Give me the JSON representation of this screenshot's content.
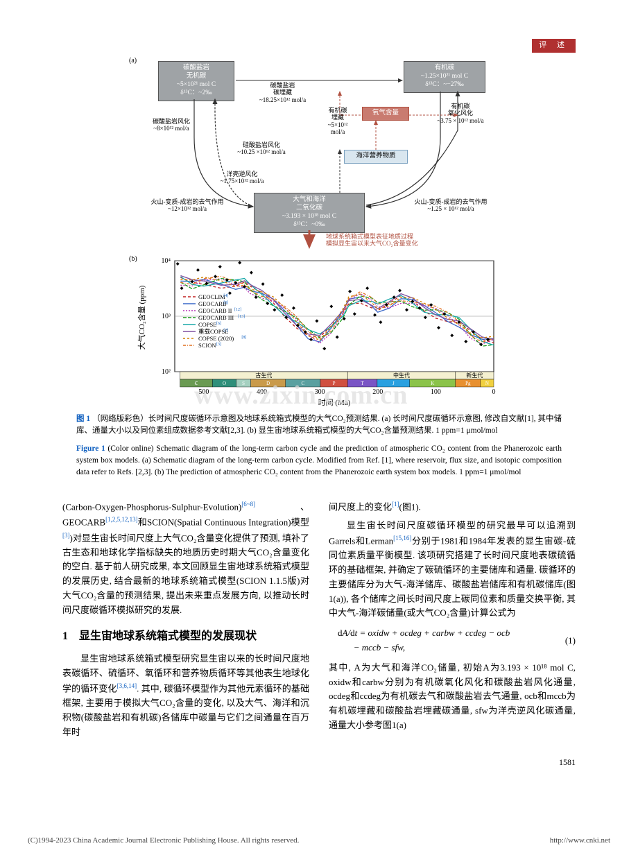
{
  "header": {
    "badge": "评 述"
  },
  "figure": {
    "panel_a_label": "(a)",
    "panel_b_label": "(b)",
    "boxes": {
      "carbonate_rock": {
        "l1": "碳酸盐岩",
        "l2": "无机碳",
        "l3": "~5×10²¹ mol C",
        "l4": "δ¹³C：~2‰"
      },
      "organic_c": {
        "l1": "有机碳",
        "l2": "~1.25×10²¹ mol C",
        "l3": "δ¹³C：~−27‰"
      },
      "ocean_atm": {
        "l1": "大气和海洋",
        "l2": "二氧化碳",
        "l3": "~3.193 × 10¹⁸ mol C",
        "l4": "δ¹³C：~0‰"
      },
      "oxygen": "氧气含量",
      "nutrient": "海洋营养物质"
    },
    "flux_labels": {
      "carbonate_burial": {
        "l1": "碳酸盐岩",
        "l2": "碳埋藏",
        "l3": "~18.25×10¹² mol/a"
      },
      "carbonate_weather": {
        "l1": "碳酸盐岩风化",
        "l2": "~8×10¹² mol/a"
      },
      "silicate_weather": {
        "l1": "硅酸盐岩风化",
        "l2": "~10.25",
        "l3": "×10¹² mol/a"
      },
      "reverse_weather": {
        "l1": "洋壳逆风化",
        "l2": "~1.75×10¹² mol/a"
      },
      "volcano_left": {
        "l1": "火山-变质-成岩的去气作用",
        "l2": "~12×10¹² mol/a"
      },
      "volcano_right": {
        "l1": "火山-变质-成岩的去气作用",
        "l2": "~1.25 × 10¹² mol/a"
      },
      "org_burial": {
        "l1": "有机碳",
        "l2": "埋藏",
        "l3": "~5×10¹²",
        "l4": "mol/a"
      },
      "org_ox_weather": {
        "l1": "有机碳",
        "l2": "氧化风化",
        "l3": "~3.75 × 10¹² mol/a"
      },
      "bottom_note": {
        "l1": "地球系统箱式模型表征地质过程",
        "l2": "模拟显生宙以来大气CO₂含量变化"
      }
    },
    "chart": {
      "ylabel": "大气CO₂含量 (ppm)",
      "xlabel": "时间 (Ma)",
      "ylim": [
        100,
        10000
      ],
      "yticks": [
        100,
        1000,
        10000
      ],
      "ytick_labels": [
        "10²",
        "10³",
        "10⁴"
      ],
      "xlim": [
        550,
        0
      ],
      "xticks": [
        500,
        400,
        300,
        200,
        100,
        0
      ],
      "background": "#ffffff",
      "grid_color": "#e8e8e8",
      "legend": [
        {
          "name": "GEOCLIM",
          "color": "#c02020",
          "dash": "4,3",
          "ref": "[4]"
        },
        {
          "name": "GEOCARB",
          "color": "#3a68c8",
          "dash": "",
          "ref": "[5]"
        },
        {
          "name": "GEOCARB II",
          "color": "#b535b5",
          "dash": "2,2",
          "ref": "[12]"
        },
        {
          "name": "GEOCARB III",
          "color": "#1a9a1a",
          "dash": "5,2",
          "ref": "[13]"
        },
        {
          "name": "COPSE",
          "color": "#18a8a8",
          "dash": "",
          "ref": "[6]"
        },
        {
          "name": "重载COPSE",
          "color": "#8050a0",
          "dash": "",
          "ref": "[7]"
        },
        {
          "name": "COPSE (2020)",
          "color": "#d08000",
          "dash": "3,3",
          "ref": "[8]"
        },
        {
          "name": "SCION",
          "color": "#e07020",
          "dash": "4,2,1,2",
          "ref": "[3]"
        }
      ],
      "geo_eras": {
        "paleozoic": "古生代",
        "mesozoic": "中生代",
        "cenozoic": "新生代"
      },
      "geo_bands": [
        {
          "label": "Ꞓ",
          "w": 40,
          "color": "#6a9a52"
        },
        {
          "label": "O",
          "w": 40,
          "color": "#2f8f7a"
        },
        {
          "label": "S",
          "w": 22,
          "color": "#a5d0c0"
        },
        {
          "label": "D",
          "w": 48,
          "color": "#c99a4a"
        },
        {
          "label": "C",
          "w": 52,
          "color": "#5aa0a0"
        },
        {
          "label": "P",
          "w": 40,
          "color": "#d05040"
        },
        {
          "label": "T",
          "w": 45,
          "color": "#7a55c5"
        },
        {
          "label": "J",
          "w": 50,
          "color": "#2aa0e0"
        },
        {
          "label": "K",
          "w": 70,
          "color": "#8bc34a"
        },
        {
          "label": "Pg",
          "w": 35,
          "color": "#e89030"
        },
        {
          "label": "N",
          "w": 18,
          "color": "#f0d040"
        }
      ],
      "data_points_approx": [
        [
          540,
          4500
        ],
        [
          520,
          3800
        ],
        [
          500,
          4100
        ],
        [
          470,
          4200
        ],
        [
          445,
          3900
        ],
        [
          430,
          4000
        ],
        [
          420,
          3200
        ],
        [
          400,
          2400
        ],
        [
          380,
          1800
        ],
        [
          360,
          1200
        ],
        [
          340,
          800
        ],
        [
          320,
          500
        ],
        [
          300,
          400
        ],
        [
          280,
          600
        ],
        [
          260,
          1100
        ],
        [
          250,
          1800
        ],
        [
          230,
          2200
        ],
        [
          210,
          1800
        ],
        [
          200,
          1500
        ],
        [
          180,
          1700
        ],
        [
          160,
          2100
        ],
        [
          140,
          1800
        ],
        [
          120,
          1400
        ],
        [
          100,
          1200
        ],
        [
          80,
          1000
        ],
        [
          60,
          800
        ],
        [
          40,
          500
        ],
        [
          20,
          350
        ],
        [
          0,
          350
        ]
      ],
      "scatter_points": [
        [
          545,
          8800
        ],
        [
          538,
          3200
        ],
        [
          520,
          4200
        ],
        [
          510,
          6800
        ],
        [
          495,
          3900
        ],
        [
          480,
          5200
        ],
        [
          472,
          7800
        ],
        [
          460,
          4500
        ],
        [
          455,
          2600
        ],
        [
          445,
          4000
        ],
        [
          438,
          9200
        ],
        [
          430,
          3400
        ],
        [
          418,
          6100
        ],
        [
          410,
          2200
        ],
        [
          398,
          3800
        ],
        [
          390,
          1700
        ],
        [
          378,
          1300
        ],
        [
          365,
          2400
        ],
        [
          358,
          950
        ],
        [
          345,
          1400
        ],
        [
          338,
          680
        ],
        [
          325,
          520
        ],
        [
          315,
          380
        ],
        [
          305,
          820
        ],
        [
          292,
          260
        ],
        [
          280,
          1500
        ],
        [
          270,
          420
        ],
        [
          258,
          900
        ],
        [
          248,
          2800
        ],
        [
          240,
          1100
        ],
        [
          228,
          1900
        ],
        [
          218,
          3200
        ],
        [
          205,
          1050
        ],
        [
          195,
          780
        ],
        [
          185,
          1600
        ],
        [
          172,
          2200
        ],
        [
          162,
          2900
        ],
        [
          150,
          1300
        ],
        [
          140,
          1850
        ],
        [
          128,
          1400
        ],
        [
          118,
          950
        ],
        [
          108,
          1600
        ],
        [
          95,
          620
        ],
        [
          85,
          1100
        ],
        [
          72,
          450
        ],
        [
          60,
          780
        ],
        [
          48,
          350
        ],
        [
          35,
          520
        ],
        [
          22,
          310
        ],
        [
          10,
          380
        ]
      ]
    },
    "caption_cn_prefix": "图 1",
    "caption_cn": "（网络版彩色）长时间尺度碳循环示意图及地球系统箱式模型的大气CO₂预测结果. (a) 长时间尺度碳循环示意图, 修改自文献[1], 其中储库、通量大小以及同位素组成数据参考文献[2,3]. (b) 显生宙地球系统箱式模型的大气CO₂含量预测结果. 1 ppm=1 μmol/mol",
    "caption_en_prefix": "Figure 1",
    "caption_en": "(Color online) Schematic diagram of the long-term carbon cycle and the prediction of atmospheric CO₂ content from the Phanerozoic earth system box models. (a) Schematic diagram of the long-term carbon cycle. Modified from Ref. [1], where reservoir, flux size, and isotopic composition data refer to Refs. [2,3]. (b) The prediction of atmospheric CO₂ content from the Phanerozoic earth system box models. 1 ppm=1 μmol/mol"
  },
  "body": {
    "left": {
      "p1a": "(Carbon-Oxygen-Phosphorus-Sulphur-Evolution)",
      "p1a_ref": "[6~8]",
      "p1b": "、GEOCARB",
      "p1b_ref": "[1,2,5,12,13]",
      "p1c": "和SCION(Spatial Continuous Integration)模型",
      "p1c_ref": "[3]",
      "p1d": ")对显生宙长时间尺度上大气CO₂含量变化提供了预测, 填补了古生态和地球化学指标缺失的地质历史时期大气CO₂含量变化的空白. 基于前人研究成果, 本文回顾显生宙地球系统箱式模型的发展历史, 结合最新的地球系统箱式模型(SCION 1.1.5版)对大气CO₂含量的预测结果, 提出未来重点发展方向, 以推动长时间尺度碳循环模拟研究的发展.",
      "h1": "1　显生宙地球系统箱式模型的发展现状",
      "p2": "显生宙地球系统箱式模型研究显生宙以来的长时间尺度地表碳循环、硫循环、氧循环和营养物质循环等其他表生地球化学的循环变化",
      "p2_ref": "[3,6,14]",
      "p2b": ". 其中, 碳循环模型作为其他元素循环的基础框架, 主要用于模拟大气CO₂含量的变化, 以及大气、海洋和沉积物(碳酸盐岩和有机碳)各储库中碳量与它们之间通量在百万年时"
    },
    "right": {
      "p1a": "间尺度上的变化",
      "p1a_ref": "[1]",
      "p1b": "(图1).",
      "p2a": "显生宙长时间尺度碳循环模型的研究最早可以追溯到Garrels和Lerman",
      "p2a_ref": "[15,16]",
      "p2b": "分别于1981和1984年发表的显生宙碳-硫同位素质量平衡模型. 该项研究搭建了长时间尺度地表碳硫循环的基础框架, 并确定了碳硫循环的主要储库和通量. 碳循环的主要储库分为大气-海洋储库、碳酸盐岩储库和有机碳储库(图1(a)), 各个储库之间长时间尺度上碳同位素和质量交换平衡, 其中大气-海洋碳储量(或大气CO₂含量)计算公式为",
      "eq": "dA/dt = oxidw + ocdeg + carbw + ccdeg − ocb − mccb − sfw,",
      "eqnum": "(1)",
      "p3": "其中, A为大气和海洋CO₂储量, 初始A为3.193 × 10¹⁸ mol C, oxidw和carbw分别为有机碳氧化风化和碳酸盐岩风化通量, ocdeg和ccdeg为有机碳去气和碳酸盐岩去气通量, ocb和mccb为有机碳埋藏和碳酸盐岩埋藏碳通量, sfw为洋壳逆风化碳通量, 通量大小参考图1(a)"
    }
  },
  "pagenum": "1581",
  "footer": {
    "left": "(C)1994-2023 China Academic Journal Electronic Publishing House. All rights reserved.",
    "right": "http://www.cnki.net"
  },
  "watermark": "www.zixin.com.cn"
}
